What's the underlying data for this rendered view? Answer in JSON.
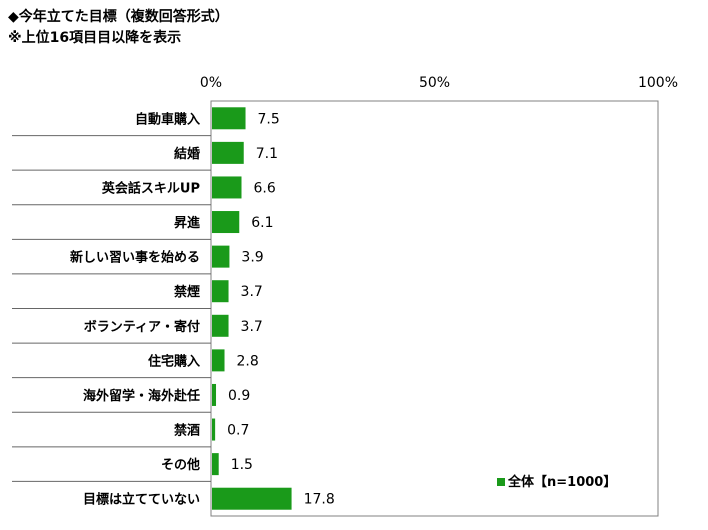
{
  "title": "◆今年立てた目標（複数回答形式）",
  "subtitle": "※上位16項目目以降を表示",
  "chart_data": {
    "type": "bar",
    "orientation": "horizontal",
    "categories": [
      "自動車購入",
      "結婚",
      "英会話スキルUP",
      "昇進",
      "新しい習い事を始める",
      "禁煙",
      "ボランティア・寄付",
      "住宅購入",
      "海外留学・海外赴任",
      "禁酒",
      "その他",
      "目標は立てていない"
    ],
    "series": [
      {
        "name": "全体【n=1000】",
        "values": [
          7.5,
          7.1,
          6.6,
          6.1,
          3.9,
          3.7,
          3.7,
          2.8,
          0.9,
          0.7,
          1.5,
          17.8
        ]
      }
    ],
    "value_labels": [
      "7.5",
      "7.1",
      "6.6",
      "6.1",
      "3.9",
      "3.7",
      "3.7",
      "2.8",
      "0.9",
      "0.7",
      "1.5",
      "17.8"
    ],
    "xlim": [
      0,
      100
    ],
    "x_ticks": [
      "0%",
      "50%",
      "100%"
    ],
    "legend_position": "bottom-right",
    "grid": false,
    "colors": {
      "bar": "#1a9a1a",
      "frame": "#808080",
      "separator": "#666666"
    }
  }
}
